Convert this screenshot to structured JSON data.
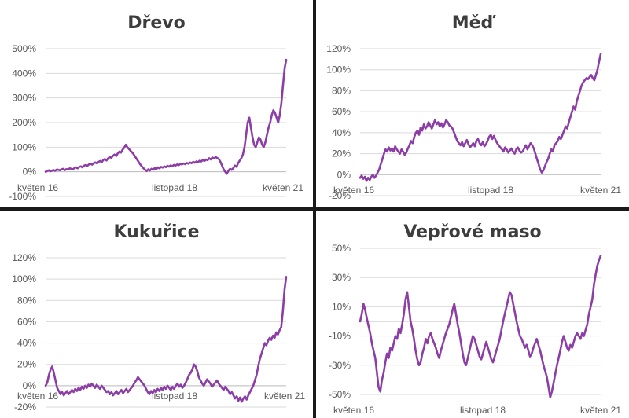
{
  "chart_data": [
    {
      "type": "line",
      "title": "Dřevo",
      "y_ticks": [
        "500%",
        "400%",
        "300%",
        "200%",
        "100%",
        "0%",
        "-100%"
      ],
      "ylim": [
        -100,
        500
      ],
      "x_ticks": [
        "květen 16",
        "listopad 18",
        "květen 21"
      ],
      "series": [
        {
          "color": "#8c3ea6",
          "values": [
            0,
            3,
            6,
            2,
            5,
            7,
            4,
            9,
            8,
            6,
            10,
            12,
            7,
            11,
            9,
            14,
            12,
            10,
            15,
            18,
            14,
            20,
            22,
            18,
            25,
            28,
            24,
            30,
            33,
            29,
            35,
            38,
            34,
            40,
            44,
            39,
            48,
            52,
            46,
            55,
            60,
            57,
            65,
            70,
            64,
            75,
            82,
            78,
            90,
            98,
            110,
            100,
            92,
            85,
            78,
            70,
            60,
            50,
            40,
            30,
            22,
            15,
            8,
            3,
            10,
            5,
            12,
            8,
            15,
            11,
            18,
            14,
            20,
            17,
            22,
            19,
            24,
            21,
            26,
            23,
            28,
            25,
            30,
            27,
            32,
            30,
            34,
            31,
            36,
            33,
            38,
            35,
            40,
            37,
            42,
            39,
            45,
            42,
            48,
            44,
            50,
            47,
            55,
            50,
            58,
            54,
            60,
            56,
            52,
            40,
            25,
            10,
            0,
            -8,
            5,
            12,
            8,
            15,
            25,
            20,
            35,
            45,
            55,
            70,
            100,
            150,
            200,
            220,
            180,
            140,
            110,
            100,
            120,
            140,
            130,
            110,
            100,
            120,
            150,
            180,
            200,
            230,
            250,
            240,
            220,
            200,
            230,
            280,
            350,
            420,
            455
          ]
        }
      ]
    },
    {
      "type": "line",
      "title": "Měď",
      "y_ticks": [
        "120%",
        "100%",
        "80%",
        "60%",
        "40%",
        "20%",
        "0%",
        "-20%"
      ],
      "ylim": [
        -20,
        120
      ],
      "x_ticks": [
        "květen 16",
        "listopad 18",
        "květen 21"
      ],
      "series": [
        {
          "color": "#8c3ea6",
          "values": [
            -3,
            -1,
            -4,
            -2,
            -6,
            -3,
            -5,
            -2,
            0,
            -3,
            -1,
            2,
            5,
            10,
            15,
            20,
            24,
            22,
            26,
            23,
            25,
            22,
            27,
            24,
            22,
            20,
            24,
            22,
            19,
            21,
            25,
            28,
            32,
            30,
            36,
            40,
            42,
            38,
            45,
            42,
            48,
            44,
            46,
            50,
            47,
            44,
            48,
            52,
            48,
            50,
            46,
            49,
            45,
            48,
            52,
            50,
            47,
            46,
            44,
            40,
            36,
            32,
            30,
            28,
            31,
            27,
            30,
            33,
            29,
            26,
            28,
            30,
            27,
            32,
            34,
            30,
            28,
            31,
            27,
            29,
            32,
            36,
            38,
            34,
            37,
            33,
            30,
            28,
            26,
            24,
            22,
            26,
            24,
            21,
            23,
            25,
            22,
            20,
            24,
            26,
            23,
            21,
            22,
            25,
            28,
            24,
            27,
            30,
            28,
            25,
            20,
            15,
            10,
            5,
            2,
            4,
            8,
            12,
            15,
            20,
            24,
            22,
            28,
            30,
            32,
            36,
            34,
            38,
            42,
            46,
            44,
            50,
            55,
            60,
            65,
            62,
            70,
            75,
            80,
            85,
            88,
            90,
            92,
            91,
            93,
            95,
            92,
            90,
            95,
            100,
            108,
            115
          ]
        }
      ]
    },
    {
      "type": "line",
      "title": "Kukuřice",
      "y_ticks": [
        "120%",
        "100%",
        "80%",
        "60%",
        "40%",
        "20%",
        "0%",
        "-20%"
      ],
      "ylim": [
        -20,
        120
      ],
      "x_ticks": [
        "květen 16",
        "listopad 18",
        "květen 21"
      ],
      "series": [
        {
          "color": "#8c3ea6",
          "values": [
            0,
            3,
            10,
            15,
            18,
            12,
            5,
            -2,
            -5,
            -8,
            -6,
            -9,
            -7,
            -5,
            -8,
            -6,
            -4,
            -6,
            -3,
            -5,
            -2,
            -4,
            -1,
            -3,
            0,
            -2,
            1,
            -1,
            2,
            0,
            -2,
            1,
            -1,
            -3,
            0,
            -2,
            -4,
            -6,
            -5,
            -8,
            -6,
            -9,
            -7,
            -5,
            -8,
            -6,
            -4,
            -7,
            -5,
            -3,
            -6,
            -4,
            -2,
            0,
            3,
            5,
            8,
            6,
            4,
            2,
            0,
            -3,
            -6,
            -8,
            -5,
            -7,
            -4,
            -6,
            -3,
            -5,
            -2,
            -4,
            -1,
            -3,
            0,
            -2,
            -4,
            -1,
            -3,
            0,
            2,
            -1,
            1,
            -2,
            0,
            3,
            6,
            10,
            12,
            15,
            20,
            18,
            14,
            8,
            5,
            2,
            0,
            3,
            6,
            4,
            2,
            -1,
            1,
            3,
            5,
            2,
            0,
            -2,
            -4,
            -1,
            -3,
            -5,
            -8,
            -6,
            -9,
            -12,
            -10,
            -14,
            -11,
            -15,
            -12,
            -10,
            -13,
            -9,
            -6,
            -3,
            0,
            5,
            10,
            18,
            25,
            30,
            35,
            40,
            38,
            42,
            45,
            43,
            47,
            45,
            50,
            48,
            52,
            55,
            70,
            90,
            102
          ]
        }
      ]
    },
    {
      "type": "line",
      "title": "Vepřové maso",
      "y_ticks": [
        "50%",
        "30%",
        "10%",
        "-10%",
        "-30%",
        "-50%"
      ],
      "ylim": [
        -50,
        50
      ],
      "x_ticks": [
        "květen 16",
        "listopad 18",
        "květen 21"
      ],
      "series": [
        {
          "color": "#8c3ea6",
          "values": [
            0,
            5,
            12,
            8,
            2,
            -3,
            -8,
            -15,
            -20,
            -25,
            -35,
            -45,
            -48,
            -40,
            -35,
            -28,
            -22,
            -25,
            -18,
            -20,
            -15,
            -10,
            -12,
            -5,
            -8,
            -2,
            5,
            15,
            20,
            10,
            0,
            -5,
            -12,
            -20,
            -26,
            -30,
            -28,
            -22,
            -18,
            -12,
            -15,
            -10,
            -8,
            -12,
            -15,
            -18,
            -22,
            -25,
            -20,
            -16,
            -12,
            -8,
            -5,
            -2,
            3,
            8,
            12,
            5,
            -2,
            -8,
            -15,
            -22,
            -28,
            -30,
            -25,
            -20,
            -15,
            -10,
            -12,
            -16,
            -20,
            -24,
            -26,
            -22,
            -18,
            -14,
            -18,
            -22,
            -26,
            -28,
            -24,
            -20,
            -16,
            -12,
            -6,
            0,
            5,
            10,
            15,
            20,
            18,
            12,
            6,
            0,
            -5,
            -10,
            -12,
            -15,
            -18,
            -16,
            -20,
            -24,
            -22,
            -18,
            -15,
            -12,
            -16,
            -20,
            -25,
            -30,
            -34,
            -38,
            -45,
            -52,
            -48,
            -42,
            -36,
            -30,
            -25,
            -20,
            -14,
            -10,
            -14,
            -18,
            -20,
            -16,
            -18,
            -14,
            -10,
            -8,
            -10,
            -12,
            -8,
            -10,
            -6,
            -2,
            5,
            10,
            15,
            25,
            32,
            38,
            42,
            45
          ]
        }
      ]
    }
  ]
}
